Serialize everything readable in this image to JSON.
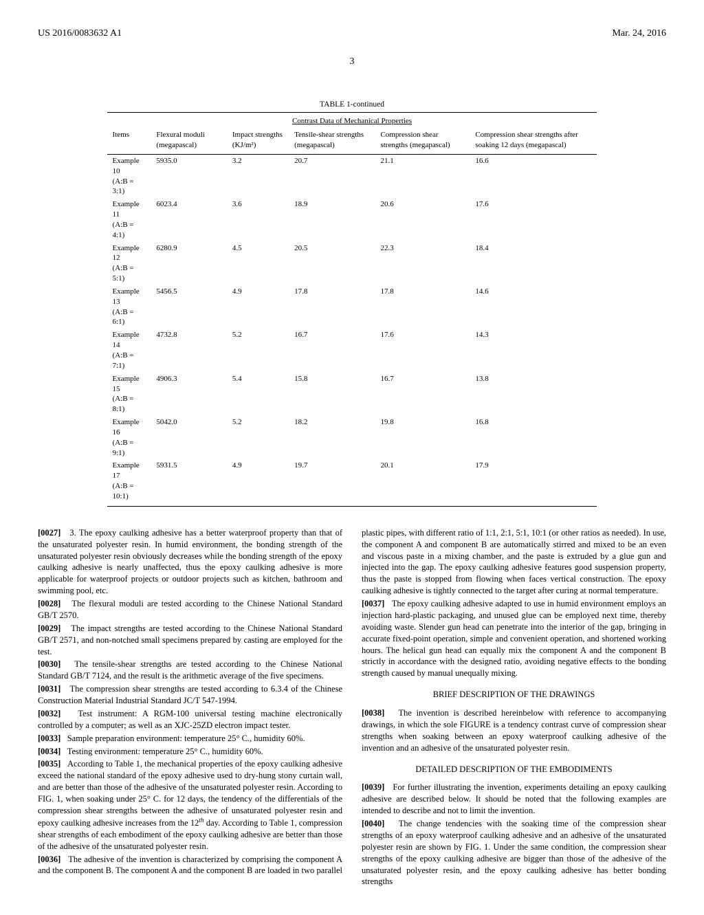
{
  "header": {
    "pub_number": "US 2016/0083632 A1",
    "pub_date": "Mar. 24, 2016",
    "page_number": "3"
  },
  "table": {
    "caption": "TABLE 1-continued",
    "subtitle": "Contrast Data of Mechanical Properties",
    "columns": [
      "Items",
      "Flexural moduli (megapascal)",
      "Impact strengths (KJ/m²)",
      "Tensile-shear strengths (megapascal)",
      "Compression shear strengths (megapascal)",
      "Compression shear strengths after soaking 12 days (megapascal)"
    ],
    "rows": [
      [
        "Example 10\n(A:B = 3:1)",
        "5935.0",
        "3.2",
        "20.7",
        "21.1",
        "16.6"
      ],
      [
        "Example 11\n(A:B = 4:1)",
        "6023.4",
        "3.6",
        "18.9",
        "20.6",
        "17.6"
      ],
      [
        "Example 12\n(A:B = 5:1)",
        "6280.9",
        "4.5",
        "20.5",
        "22.3",
        "18.4"
      ],
      [
        "Example 13\n(A:B = 6:1)",
        "5456.5",
        "4.9",
        "17.8",
        "17.8",
        "14.6"
      ],
      [
        "Example 14\n(A:B = 7:1)",
        "4732.8",
        "5.2",
        "16.7",
        "17.6",
        "14.3"
      ],
      [
        "Example 15\n(A:B = 8:1)",
        "4906.3",
        "5.4",
        "15.8",
        "16.7",
        "13.8"
      ],
      [
        "Example 16\n(A:B = 9:1)",
        "5042.0",
        "5.2",
        "18.2",
        "19.8",
        "16.8"
      ],
      [
        "Example 17\n(A:B = 10:1)",
        "5931.5",
        "4.9",
        "19.7",
        "20.1",
        "17.9"
      ]
    ]
  },
  "paragraphs": {
    "p27": "3. The epoxy caulking adhesive has a better waterproof property than that of the unsaturated polyester resin. In humid environment, the bonding strength of the unsaturated polyester resin obviously decreases while the bonding strength of the epoxy caulking adhesive is nearly unaffected, thus the epoxy caulking adhesive is more applicable for waterproof projects or outdoor projects such as kitchen, bathroom and swimming pool, etc.",
    "p28": "The flexural moduli are tested according to the Chinese National Standard GB/T 2570.",
    "p29": "The impact strengths are tested according to the Chinese National Standard GB/T 2571, and non-notched small specimens prepared by casting are employed for the test.",
    "p30": "The tensile-shear strengths are tested according to the Chinese National Standard GB/T 7124, and the result is the arithmetic average of the five specimens.",
    "p31": "The compression shear strengths are tested according to 6.3.4 of the Chinese Construction Material Industrial Standard JC/T 547-1994.",
    "p32": "Test instrument: A RGM-100 universal testing machine electronically controlled by a computer; as well as an XJC-25ZD electron impact tester.",
    "p33": "Sample preparation environment: temperature 25° C., humidity 60%.",
    "p34": "Testing environment: temperature 25° C., humidity 60%.",
    "p35_a": "According to Table 1, the mechanical properties of the epoxy caulking adhesive exceed the national standard of the epoxy adhesive used to dry-hung stony curtain wall, and are better than those of the adhesive of the unsaturated polyester resin. According to FIG. 1, when soaking under 25° C. for 12 days, the tendency of the differentials of the compression shear strengths between the adhesive of unsaturated polyester resin and epoxy caulking adhesive increases from the 12",
    "p35_b": " day. According to Table 1, compression shear strengths of each embodiment of the epoxy caulking adhesive are better than those of the adhesive of the unsaturated polyester resin.",
    "p36": "The adhesive of the invention is characterized by comprising the component A and the component B. The component A and the component B are loaded in two parallel plastic pipes, with different ratio of 1:1, 2:1, 5:1, 10:1 (or other ratios as needed). In use, the component A and component B are automatically stirred and mixed to be an even and viscous paste in a mixing chamber, and the paste is extruded by a glue gun and injected into the gap. The epoxy caulking adhesive features good suspension property, thus the paste is stopped from flowing when faces vertical construction. The epoxy caulking adhesive is tightly connected to the target after curing at normal temperature.",
    "p37": "The epoxy caulking adhesive adapted to use in humid environment employs an injection hard-plastic packaging, and unused glue can be employed next time, thereby avoiding waste. Slender gun head can penetrate into the interior of the gap, bringing in accurate fixed-point operation, simple and convenient operation, and shortened working hours. The helical gun head can equally mix the component A and the component B strictly in accordance with the designed ratio, avoiding negative effects to the bonding strength caused by manual unequally mixing.",
    "p38": "The invention is described hereinbelow with reference to accompanying drawings, in which the sole FIGURE is a tendency contrast curve of compression shear strengths when soaking between an epoxy waterproof caulking adhesive of the invention and an adhesive of the unsaturated polyester resin.",
    "p39": "For further illustrating the invention, experiments detailing an epoxy caulking adhesive are described below. It should be noted that the following examples are intended to describe and not to limit the invention.",
    "p40": "The change tendencies with the soaking time of the compression shear strengths of an epoxy waterproof caulking adhesive and an adhesive of the unsaturated polyester resin are shown by FIG. 1. Under the same condition, the compression shear strengths of the epoxy caulking adhesive are bigger than those of the adhesive of the unsaturated polyester resin, and the epoxy caulking adhesive has better bonding strengths"
  },
  "headings": {
    "brief": "BRIEF DESCRIPTION OF THE DRAWINGS",
    "detailed": "DETAILED DESCRIPTION OF THE EMBODIMENTS"
  },
  "labels": {
    "p27": "[0027]",
    "p28": "[0028]",
    "p29": "[0029]",
    "p30": "[0030]",
    "p31": "[0031]",
    "p32": "[0032]",
    "p33": "[0033]",
    "p34": "[0034]",
    "p35": "[0035]",
    "p36": "[0036]",
    "p37": "[0037]",
    "p38": "[0038]",
    "p39": "[0039]",
    "p40": "[0040]",
    "th_sup": "th"
  }
}
